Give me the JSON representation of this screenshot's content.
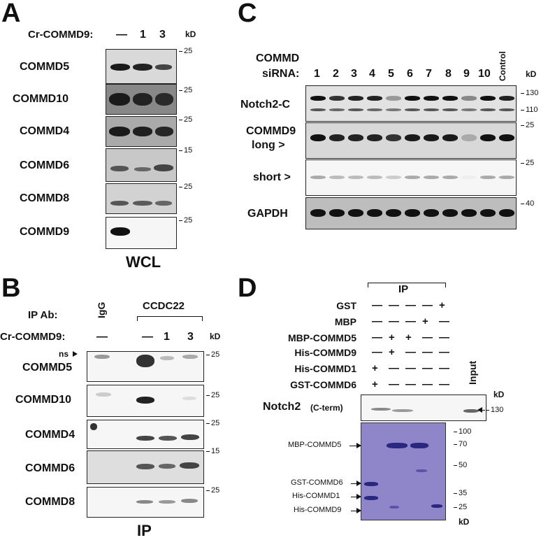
{
  "panelA": {
    "letter": "A",
    "header_label": "Cr-COMMD9:",
    "lanes": [
      "—",
      "1",
      "3"
    ],
    "kd_label": "kD",
    "rows": [
      {
        "label": "COMMD5",
        "marker": "25"
      },
      {
        "label": "COMMD10",
        "marker": "25"
      },
      {
        "label": "COMMD4",
        "marker": "25"
      },
      {
        "label": "COMMD6",
        "marker": "15"
      },
      {
        "label": "COMMD8",
        "marker": "25"
      },
      {
        "label": "COMMD9",
        "marker": "25"
      }
    ],
    "footer": "WCL"
  },
  "panelB": {
    "letter": "B",
    "ip_ab_label": "IP Ab:",
    "igg_label": "IgG",
    "ccdc22_label": "CCDC22",
    "header_label": "Cr-COMMD9:",
    "lanes": [
      "—",
      "—",
      "1",
      "3"
    ],
    "kd_label": "kD",
    "ns_label": "ns",
    "rows": [
      {
        "label": "COMMD5",
        "marker": "25"
      },
      {
        "label": "COMMD10",
        "marker": "25"
      },
      {
        "label": "COMMD4",
        "marker": "25"
      },
      {
        "label": "COMMD6",
        "marker": "15"
      },
      {
        "label": "COMMD8",
        "marker": "25"
      }
    ],
    "footer": "IP"
  },
  "panelC": {
    "letter": "C",
    "commd_label": "COMMD",
    "sirna_label": "siRNA:",
    "lanes": [
      "1",
      "2",
      "3",
      "4",
      "5",
      "6",
      "7",
      "8",
      "9",
      "10"
    ],
    "control_label": "Control",
    "kd_label": "kD",
    "rows": [
      {
        "label": "Notch2-C",
        "markers": [
          "130",
          "110"
        ]
      },
      {
        "label": "COMMD9",
        "sublabel": "long >",
        "markers": [
          "25"
        ]
      },
      {
        "label": "short >",
        "markers": [
          "25"
        ]
      },
      {
        "label": "GAPDH",
        "markers": [
          "40"
        ]
      }
    ]
  },
  "panelD": {
    "letter": "D",
    "ip_label": "IP",
    "conditions": [
      {
        "label": "GST",
        "signs": [
          "—",
          "—",
          "—",
          "—",
          "+"
        ]
      },
      {
        "label": "MBP",
        "signs": [
          "—",
          "—",
          "—",
          "+",
          "—"
        ]
      },
      {
        "label": "MBP-COMMD5",
        "signs": [
          "—",
          "+",
          "+",
          "—",
          "—"
        ]
      },
      {
        "label": "His-COMMD9",
        "signs": [
          "—",
          "+",
          "—",
          "—",
          "—"
        ]
      },
      {
        "label": "His-COMMD1",
        "signs": [
          "+",
          "—",
          "—",
          "—",
          "—"
        ]
      },
      {
        "label": "GST-COMMD6",
        "signs": [
          "+",
          "—",
          "—",
          "—",
          "—"
        ]
      }
    ],
    "input_label": "Input",
    "kd_label": "kD",
    "notch_label": "Notch2",
    "notch_sub": "(C-term)",
    "notch_marker": "130",
    "gel_markers": [
      "100",
      "70",
      "50",
      "35",
      "25"
    ],
    "gel_kd": "kD",
    "arrows": [
      "MBP-COMMD5",
      "GST-COMMD6",
      "His-COMMD1",
      "His-COMMD9"
    ]
  },
  "colors": {
    "gel": "#8e86c8",
    "band": "#2a2780",
    "blot_band": "#111111"
  }
}
